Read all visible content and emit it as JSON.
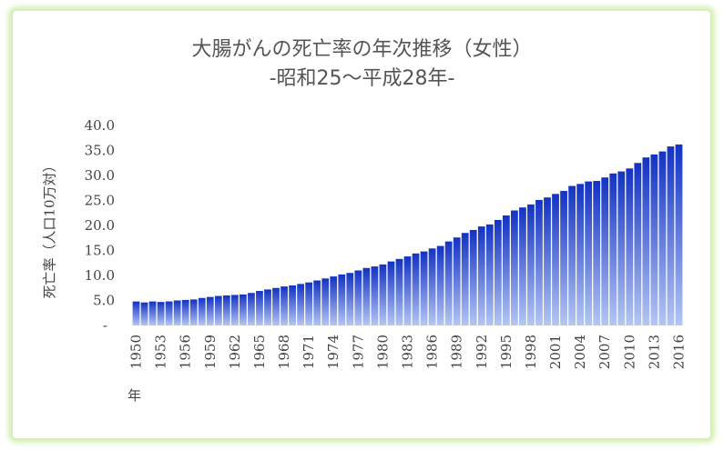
{
  "chart_data": {
    "type": "bar",
    "title": "大腸がんの死亡率の年次推移（女性）",
    "subtitle": "-昭和25〜平成28年-",
    "xlabel": "年",
    "ylabel": "死亡率（人口10万対）",
    "ylim": [
      0,
      40
    ],
    "y_ticks": [
      "-",
      "5.0",
      "10.0",
      "15.0",
      "20.0",
      "25.0",
      "30.0",
      "35.0",
      "40.0"
    ],
    "x_tick_labels": [
      "1950",
      "1953",
      "1956",
      "1959",
      "1962",
      "1965",
      "1968",
      "1971",
      "1974",
      "1977",
      "1980",
      "1983",
      "1986",
      "1989",
      "1992",
      "1995",
      "1998",
      "2001",
      "2004",
      "2007",
      "2010",
      "2013",
      "2016"
    ],
    "categories": [
      "1950",
      "1951",
      "1952",
      "1953",
      "1954",
      "1955",
      "1956",
      "1957",
      "1958",
      "1959",
      "1960",
      "1961",
      "1962",
      "1963",
      "1964",
      "1965",
      "1966",
      "1967",
      "1968",
      "1969",
      "1970",
      "1971",
      "1972",
      "1973",
      "1974",
      "1975",
      "1976",
      "1977",
      "1978",
      "1979",
      "1980",
      "1981",
      "1982",
      "1983",
      "1984",
      "1985",
      "1986",
      "1987",
      "1988",
      "1989",
      "1990",
      "1991",
      "1992",
      "1993",
      "1994",
      "1995",
      "1996",
      "1997",
      "1998",
      "1999",
      "2000",
      "2001",
      "2002",
      "2003",
      "2004",
      "2005",
      "2006",
      "2007",
      "2008",
      "2009",
      "2010",
      "2011",
      "2012",
      "2013",
      "2014",
      "2015",
      "2016"
    ],
    "values": [
      4.8,
      4.6,
      4.8,
      4.7,
      4.8,
      5.0,
      5.1,
      5.2,
      5.5,
      5.7,
      5.9,
      6.0,
      6.1,
      6.2,
      6.5,
      6.9,
      7.2,
      7.5,
      7.8,
      8.0,
      8.3,
      8.6,
      9.0,
      9.4,
      9.8,
      10.2,
      10.5,
      11.0,
      11.5,
      11.8,
      12.2,
      12.8,
      13.3,
      13.8,
      14.4,
      14.8,
      15.4,
      15.9,
      16.8,
      17.6,
      18.5,
      19.1,
      19.8,
      20.2,
      21.1,
      22.0,
      23.0,
      23.6,
      24.2,
      25.1,
      25.6,
      26.3,
      26.9,
      27.9,
      28.3,
      28.8,
      28.9,
      29.6,
      30.4,
      30.8,
      31.4,
      32.5,
      33.6,
      34.2,
      34.8,
      35.8,
      36.2
    ],
    "colors": {
      "bar_top": "#1232c4",
      "bar_bottom": "#b4c6f2",
      "frame_glow": "#d4f0b4",
      "text": "#444444"
    },
    "grid": false,
    "legend": "none"
  }
}
